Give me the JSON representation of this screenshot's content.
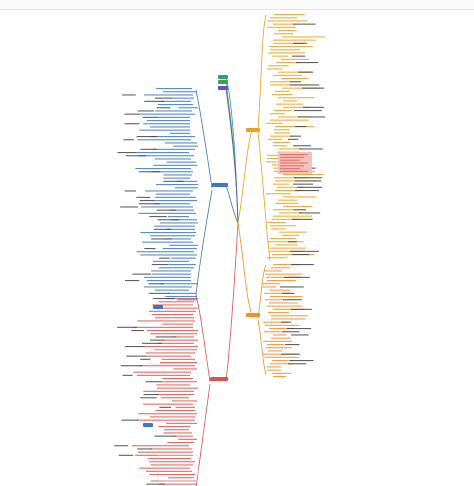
{
  "root": {
    "label": "",
    "color": "#2e8b57"
  },
  "branches": {
    "top_left": [
      {
        "label": "",
        "color": "#2a9d8f"
      },
      {
        "label": "",
        "color": "#43a047"
      },
      {
        "label": "",
        "color": "#6a4fbf"
      }
    ],
    "right_top": {
      "label": "",
      "color": "#e8a31a"
    },
    "right_bottom": {
      "label": "",
      "color": "#f0902a"
    },
    "left_blue": {
      "label": "",
      "color": "#3b78c4"
    },
    "left_red": {
      "label": "",
      "color": "#d9534f"
    }
  },
  "colors": {
    "blue": "#3b78c4",
    "orange": "#e8a31a",
    "red": "#d9534f",
    "text": "#444444",
    "highlight": "#e8776b"
  }
}
